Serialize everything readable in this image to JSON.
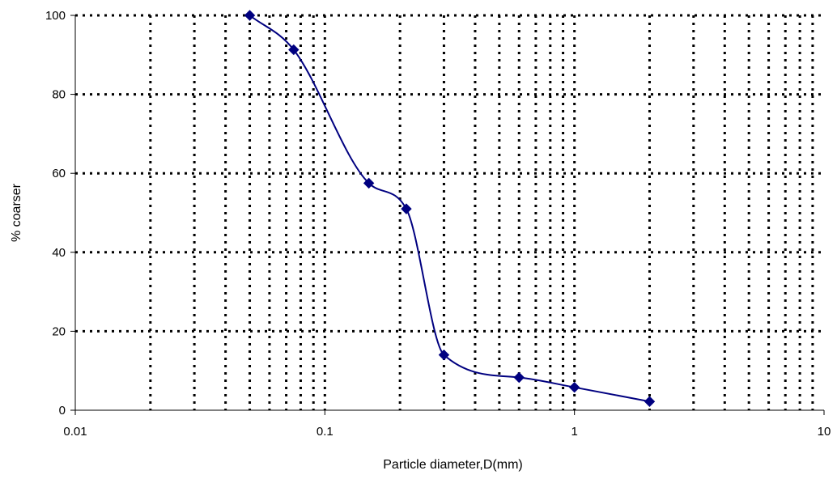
{
  "chart_data": {
    "type": "scatter",
    "title": "",
    "xlabel": "Particle diameter,D(mm)",
    "ylabel": "% coarser",
    "x_scale": "log",
    "xlim": [
      0.01,
      10
    ],
    "ylim": [
      0,
      100
    ],
    "x_tick_labels": [
      "0.01",
      "0.1",
      "1",
      "10"
    ],
    "y_tick_labels": [
      "0",
      "20",
      "40",
      "60",
      "80",
      "100"
    ],
    "grid": true,
    "legend": "none",
    "series": [
      {
        "x": [
          0.05,
          0.075,
          0.15,
          0.212,
          0.3,
          0.6,
          1.0,
          2.0
        ],
        "y": [
          100,
          91.3,
          57.5,
          51.0,
          14.0,
          8.3,
          5.8,
          2.2
        ],
        "marker": "diamond",
        "line": "smooth",
        "color": "#000080"
      }
    ]
  }
}
